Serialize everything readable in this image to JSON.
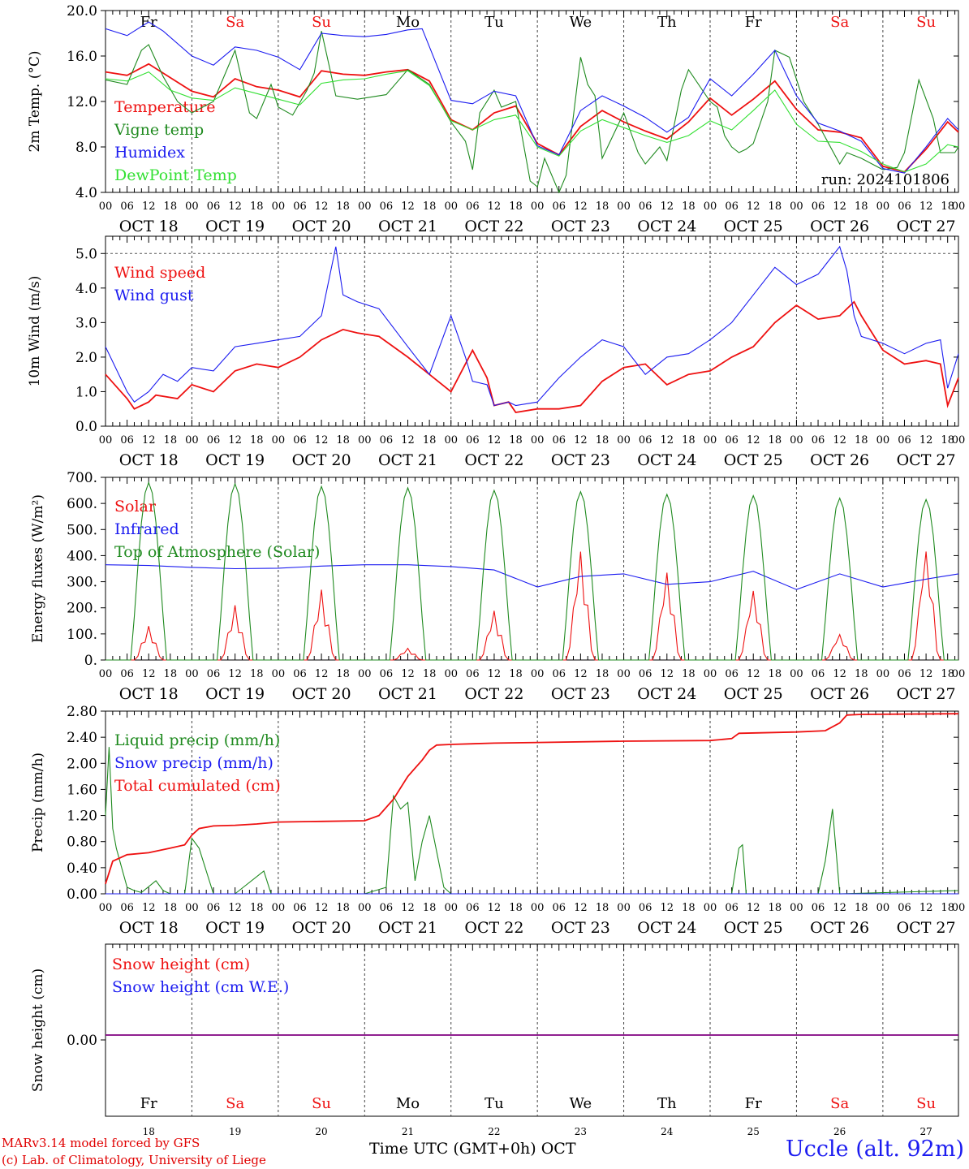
{
  "figure": {
    "run_label": "run: 2024101806",
    "credit_1": "MARv3.14 model forced by GFS",
    "credit_2": "(c) Lab. of Climatology, University of Liege",
    "station": "Uccle (alt. 92m)",
    "xtitle": "Time UTC (GMT+0h) OCT",
    "day_names": [
      "Fr",
      "Sa",
      "Su",
      "Mo",
      "Tu",
      "We",
      "Th",
      "Fr",
      "Sa",
      "Su"
    ],
    "weekend_flags": [
      false,
      true,
      true,
      false,
      false,
      false,
      false,
      false,
      true,
      true
    ],
    "date_labels": [
      "OCT 18",
      "OCT 19",
      "OCT 20",
      "OCT 21",
      "OCT 22",
      "OCT 23",
      "OCT 24",
      "OCT 25",
      "OCT 26",
      "OCT 27"
    ],
    "day_numbers": [
      "18",
      "19",
      "20",
      "21",
      "22",
      "23",
      "24",
      "25",
      "26",
      "27"
    ],
    "hour_ticks": [
      "00",
      "06",
      "12",
      "18"
    ],
    "colors": {
      "red": "#ee1111",
      "green": "#1f8a1f",
      "blue": "#1c1cf0",
      "lightgreen": "#33e033",
      "purple": "#800080",
      "grid": "#555555"
    }
  },
  "chart_data": [
    {
      "type": "line",
      "x_unit": "hours from 2024-10-18 00 UTC",
      "ylabel": "2m Temp. (°C)",
      "ylim": [
        4.0,
        20.0
      ],
      "yticks": [
        "4.0",
        "8.0",
        "12.0",
        "16.0",
        "20.0"
      ],
      "series": [
        {
          "name": "Temperature",
          "color": "red",
          "x": [
            0,
            6,
            12,
            18,
            24,
            30,
            36,
            42,
            48,
            54,
            60,
            66,
            72,
            78,
            84,
            90,
            96,
            102,
            108,
            114,
            120,
            126,
            132,
            138,
            144,
            150,
            156,
            162,
            168,
            174,
            180,
            186,
            192,
            198,
            204,
            210,
            216,
            222,
            228,
            234,
            237
          ],
          "values": [
            14.6,
            14.3,
            15.3,
            14.1,
            12.9,
            12.4,
            14.0,
            13.3,
            13.0,
            12.4,
            14.7,
            14.4,
            14.3,
            14.6,
            14.8,
            13.8,
            10.4,
            9.5,
            11.0,
            11.6,
            8.3,
            7.3,
            9.8,
            11.2,
            10.2,
            9.4,
            8.7,
            10.2,
            12.3,
            10.8,
            12.2,
            13.8,
            11.3,
            9.5,
            9.3,
            8.8,
            6.3,
            5.8,
            7.8,
            10.2,
            9.3
          ]
        },
        {
          "name": "Vigne temp",
          "color": "green",
          "x": [
            0,
            6,
            10,
            12,
            16,
            20,
            24,
            30,
            32,
            36,
            40,
            42,
            46,
            48,
            52,
            56,
            58,
            60,
            64,
            70,
            78,
            84,
            90,
            96,
            100,
            102,
            104,
            108,
            110,
            114,
            118,
            120,
            122,
            126,
            128,
            132,
            134,
            136,
            138,
            144,
            148,
            150,
            154,
            156,
            160,
            162,
            168,
            170,
            172,
            174,
            176,
            178,
            180,
            184,
            186,
            190,
            194,
            198,
            204,
            206,
            210,
            216,
            220,
            222,
            226,
            230,
            232,
            236,
            237
          ],
          "values": [
            13.9,
            13.5,
            16.5,
            17.0,
            14.2,
            12.0,
            11.0,
            12.0,
            13.5,
            16.5,
            11.0,
            10.5,
            13.5,
            11.5,
            10.8,
            13.0,
            14.5,
            18.2,
            12.5,
            12.2,
            12.6,
            14.8,
            13.5,
            10.2,
            8.5,
            6.0,
            11.0,
            13.0,
            11.5,
            12.0,
            5.0,
            4.5,
            7.0,
            4.0,
            5.5,
            15.9,
            13.5,
            12.5,
            7.0,
            11.0,
            7.5,
            6.5,
            8.0,
            6.8,
            13.0,
            14.8,
            12.0,
            11.5,
            9.0,
            8.0,
            7.5,
            7.8,
            8.3,
            12.0,
            16.5,
            15.9,
            12.0,
            10.0,
            6.5,
            7.5,
            7.0,
            6.0,
            6.2,
            7.5,
            13.9,
            10.5,
            7.5,
            7.5,
            8.0
          ]
        },
        {
          "name": "Humidex",
          "color": "blue",
          "x": [
            0,
            6,
            12,
            16,
            24,
            30,
            36,
            42,
            48,
            54,
            60,
            66,
            72,
            78,
            84,
            88,
            96,
            102,
            108,
            114,
            120,
            126,
            132,
            138,
            144,
            150,
            156,
            162,
            168,
            174,
            180,
            186,
            192,
            198,
            204,
            210,
            216,
            222,
            228,
            234,
            237
          ],
          "values": [
            18.4,
            17.8,
            19.0,
            18.2,
            16.0,
            15.2,
            16.8,
            16.5,
            15.9,
            14.8,
            18.0,
            17.8,
            17.7,
            17.9,
            18.3,
            18.4,
            12.1,
            11.8,
            12.9,
            12.5,
            8.1,
            7.3,
            11.2,
            12.5,
            11.6,
            10.6,
            9.3,
            10.6,
            14.0,
            12.5,
            14.4,
            16.5,
            12.5,
            10.1,
            9.4,
            8.5,
            6.1,
            5.7,
            8.0,
            10.5,
            9.5
          ]
        },
        {
          "name": "DewPoint Temp",
          "color": "lightgreen",
          "x": [
            0,
            6,
            12,
            18,
            24,
            30,
            36,
            42,
            48,
            54,
            60,
            66,
            72,
            78,
            84,
            90,
            96,
            102,
            108,
            114,
            120,
            126,
            132,
            138,
            144,
            150,
            156,
            162,
            168,
            174,
            180,
            186,
            192,
            198,
            204,
            210,
            216,
            222,
            228,
            234,
            237
          ],
          "values": [
            14.0,
            13.8,
            14.6,
            13.0,
            12.3,
            12.1,
            13.2,
            12.7,
            12.2,
            11.7,
            13.6,
            13.9,
            14.0,
            14.4,
            14.7,
            13.4,
            10.3,
            9.5,
            10.4,
            10.8,
            8.0,
            7.2,
            9.4,
            10.4,
            9.7,
            9.0,
            8.4,
            9.0,
            10.3,
            9.5,
            11.2,
            13.0,
            10.0,
            8.5,
            8.4,
            7.6,
            6.5,
            5.8,
            6.5,
            8.2,
            8.0
          ]
        }
      ]
    },
    {
      "type": "line",
      "ylabel": "10m Wind (m/s)",
      "ylim": [
        0.0,
        5.5
      ],
      "yticks": [
        "0.0",
        "1.0",
        "2.0",
        "3.0",
        "4.0",
        "5.0"
      ],
      "series": [
        {
          "name": "Wind speed",
          "color": "red",
          "x": [
            0,
            6,
            8,
            12,
            14,
            20,
            24,
            30,
            36,
            42,
            48,
            54,
            60,
            66,
            70,
            76,
            84,
            90,
            96,
            102,
            106,
            108,
            112,
            114,
            120,
            126,
            132,
            138,
            144,
            150,
            156,
            162,
            168,
            174,
            180,
            186,
            192,
            198,
            204,
            208,
            210,
            216,
            222,
            228,
            232,
            234,
            237
          ],
          "values": [
            1.5,
            0.8,
            0.5,
            0.7,
            0.9,
            0.8,
            1.2,
            1.0,
            1.6,
            1.8,
            1.7,
            2.0,
            2.5,
            2.8,
            2.7,
            2.6,
            2.0,
            1.5,
            1.0,
            2.2,
            1.4,
            0.6,
            0.7,
            0.4,
            0.5,
            0.5,
            0.6,
            1.3,
            1.7,
            1.8,
            1.2,
            1.5,
            1.6,
            2.0,
            2.3,
            3.0,
            3.5,
            3.1,
            3.2,
            3.6,
            3.2,
            2.2,
            1.8,
            1.9,
            1.8,
            0.6,
            1.4
          ]
        },
        {
          "name": "Wind gust",
          "color": "blue",
          "x": [
            0,
            6,
            8,
            12,
            16,
            20,
            24,
            30,
            36,
            42,
            48,
            54,
            60,
            64,
            66,
            70,
            76,
            84,
            90,
            96,
            100,
            102,
            106,
            108,
            112,
            114,
            120,
            126,
            132,
            138,
            144,
            150,
            156,
            162,
            168,
            174,
            180,
            186,
            192,
            198,
            204,
            206,
            208,
            210,
            216,
            222,
            228,
            232,
            234,
            237
          ],
          "values": [
            2.3,
            1.0,
            0.7,
            1.0,
            1.5,
            1.3,
            1.7,
            1.6,
            2.3,
            2.4,
            2.5,
            2.6,
            3.2,
            5.2,
            3.8,
            3.6,
            3.4,
            2.3,
            1.5,
            3.2,
            2.0,
            1.3,
            1.2,
            0.6,
            0.7,
            0.6,
            0.7,
            1.4,
            2.0,
            2.5,
            2.3,
            1.5,
            2.0,
            2.1,
            2.5,
            3.0,
            3.8,
            4.6,
            4.1,
            4.4,
            5.2,
            4.5,
            3.2,
            2.6,
            2.4,
            2.1,
            2.4,
            2.5,
            1.1,
            2.1
          ]
        }
      ]
    },
    {
      "type": "line",
      "ylabel": "Energy fluxes (W/m²)",
      "ylim": [
        0,
        700
      ],
      "yticks": [
        "0.",
        "100.",
        "200.",
        "300.",
        "400.",
        "500.",
        "600.",
        "700."
      ],
      "series": [
        {
          "name": "Solar",
          "color": "red",
          "day_peaks": [
            130,
            210,
            270,
            45,
            190,
            420,
            340,
            270,
            100,
            430
          ]
        },
        {
          "name": "Infrared",
          "color": "blue",
          "x": [
            0,
            12,
            24,
            36,
            48,
            60,
            72,
            84,
            96,
            108,
            120,
            132,
            144,
            156,
            168,
            180,
            192,
            204,
            216,
            228,
            237
          ],
          "values": [
            365,
            362,
            355,
            350,
            352,
            360,
            365,
            365,
            358,
            345,
            280,
            320,
            330,
            290,
            300,
            340,
            270,
            330,
            280,
            310,
            330
          ]
        },
        {
          "name": "Top of Atmosphere (Solar)",
          "color": "green",
          "day_peaks": [
            680,
            675,
            665,
            660,
            650,
            645,
            635,
            630,
            620,
            615
          ]
        }
      ]
    },
    {
      "type": "line",
      "ylabel": "Precip (mm/h)",
      "ylim": [
        0.0,
        2.8
      ],
      "yticks": [
        "0.00",
        "0.40",
        "0.80",
        "1.20",
        "1.60",
        "2.00",
        "2.40",
        "2.80"
      ],
      "series": [
        {
          "name": "Liquid precip (mm/h)",
          "color": "green",
          "x": [
            0,
            1,
            2,
            3,
            4,
            6,
            8,
            10,
            14,
            16,
            18,
            22,
            24,
            26,
            30,
            36,
            44,
            46,
            48,
            72,
            78,
            80,
            82,
            84,
            86,
            88,
            90,
            94,
            96,
            100,
            174,
            176,
            177,
            178,
            180,
            198,
            200,
            202,
            204,
            237
          ],
          "values": [
            1.2,
            2.25,
            1.0,
            0.7,
            0.5,
            0.1,
            0.05,
            0.02,
            0.2,
            0.05,
            0.0,
            0.0,
            0.85,
            0.7,
            0.0,
            0.0,
            0.35,
            0.0,
            0.0,
            0.0,
            0.1,
            1.5,
            1.3,
            1.4,
            0.2,
            0.8,
            1.2,
            0.1,
            0.0,
            0.0,
            0.0,
            0.7,
            0.75,
            0.0,
            0.0,
            0.0,
            0.5,
            1.3,
            0.0,
            0.05
          ]
        },
        {
          "name": "Snow precip (mm/h)",
          "color": "blue",
          "x": [
            0,
            237
          ],
          "values": [
            0.0,
            0.0
          ]
        },
        {
          "name": "Total cumulated (cm)",
          "color": "red",
          "x": [
            0,
            2,
            6,
            12,
            18,
            22,
            24,
            26,
            30,
            36,
            42,
            48,
            60,
            72,
            76,
            80,
            84,
            88,
            90,
            92,
            96,
            102,
            108,
            120,
            144,
            168,
            174,
            176,
            192,
            200,
            204,
            206,
            210,
            237
          ],
          "values": [
            0.15,
            0.5,
            0.6,
            0.63,
            0.7,
            0.75,
            0.9,
            1.0,
            1.04,
            1.05,
            1.07,
            1.1,
            1.11,
            1.12,
            1.2,
            1.45,
            1.8,
            2.05,
            2.2,
            2.28,
            2.29,
            2.3,
            2.31,
            2.32,
            2.34,
            2.35,
            2.38,
            2.46,
            2.48,
            2.5,
            2.62,
            2.74,
            2.75,
            2.76
          ]
        }
      ]
    },
    {
      "type": "line",
      "ylabel": "Snow height (cm)",
      "yticks": [
        "0.00"
      ],
      "series": [
        {
          "name": "Snow height (cm)",
          "color": "red",
          "x": [
            0,
            237
          ],
          "values": [
            0.0,
            0.0
          ]
        },
        {
          "name": "Snow height (cm W.E.)",
          "color": "blue",
          "x": [
            0,
            237
          ],
          "values": [
            0.0,
            0.0
          ]
        }
      ]
    }
  ]
}
